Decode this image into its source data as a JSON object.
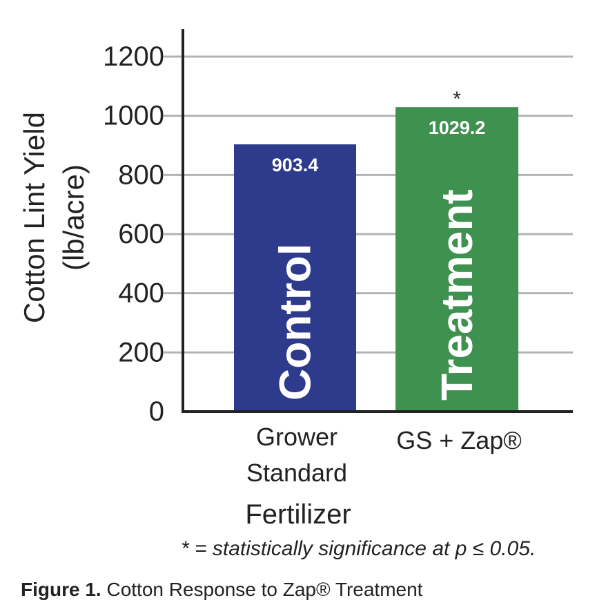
{
  "chart_data": {
    "type": "bar",
    "categories": [
      "Grower\nStandard",
      "GS + Zap®"
    ],
    "category_lines": [
      [
        "Grower",
        "Standard"
      ],
      [
        "GS + Zap®"
      ]
    ],
    "values": [
      903.4,
      1029.2
    ],
    "value_labels": [
      "903.4",
      "1029.2"
    ],
    "bar_inner_labels": [
      "Control",
      "Treatment"
    ],
    "bar_colors": [
      "#2e3a8c",
      "#3f9150"
    ],
    "significance_markers": [
      "",
      "*"
    ],
    "xlabel": "Fertilizer",
    "ylabel_lines": [
      "Cotton Lint Yield",
      "(lb/acre)"
    ],
    "ylim": [
      0,
      1200
    ],
    "yticks": [
      0,
      200,
      400,
      600,
      800,
      1000,
      1200
    ],
    "grid": true,
    "gridline_color": "#b3b3b3"
  },
  "footnote": "* = statistically significance at p ≤ 0.05.",
  "caption": {
    "label": "Figure 1.",
    "text": " Cotton Response to Zap® Treatment"
  }
}
